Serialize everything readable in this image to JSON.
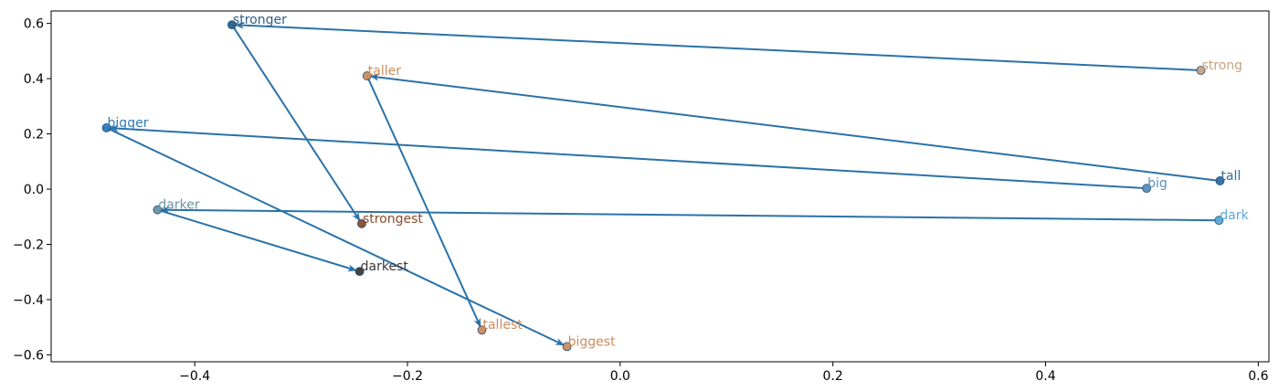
{
  "chart_data": {
    "type": "scatter",
    "title": "",
    "xlabel": "",
    "ylabel": "",
    "xlim": [
      -0.535,
      0.61
    ],
    "ylim": [
      -0.625,
      0.645
    ],
    "xticks": [
      -0.4,
      -0.2,
      0.0,
      0.2,
      0.4,
      0.6
    ],
    "xtick_labels": [
      "−0.4",
      "−0.2",
      "0.0",
      "0.2",
      "0.4",
      "0.6"
    ],
    "yticks": [
      -0.6,
      -0.4,
      -0.2,
      0.0,
      0.2,
      0.4,
      0.6
    ],
    "ytick_labels": [
      "−0.6",
      "−0.4",
      "−0.2",
      "0.0",
      "0.2",
      "0.4",
      "0.6"
    ],
    "grid": false,
    "colors": {
      "arrow": "#2a72a8",
      "comparative": "#1f77b4",
      "superlative": "#cc8c5c",
      "point_edge": "#1f4e79"
    },
    "points": [
      {
        "word": "strong",
        "x": 0.546,
        "y": 0.43,
        "color": "#c8a27e"
      },
      {
        "word": "stronger",
        "x": -0.365,
        "y": 0.595,
        "color": "#2b5f87"
      },
      {
        "word": "strongest",
        "x": -0.243,
        "y": -0.125,
        "color": "#8b4a2a"
      },
      {
        "word": "tall",
        "x": 0.564,
        "y": 0.03,
        "color": "#2e6f9e"
      },
      {
        "word": "taller",
        "x": -0.238,
        "y": 0.41,
        "color": "#cc8c5c"
      },
      {
        "word": "tallest",
        "x": -0.13,
        "y": -0.51,
        "color": "#cc8c5c"
      },
      {
        "word": "big",
        "x": 0.495,
        "y": 0.003,
        "color": "#5a90b8"
      },
      {
        "word": "bigger",
        "x": -0.483,
        "y": 0.222,
        "color": "#2e7ab8"
      },
      {
        "word": "biggest",
        "x": -0.05,
        "y": -0.57,
        "color": "#cc8c5c"
      },
      {
        "word": "dark",
        "x": 0.563,
        "y": -0.113,
        "color": "#5aa8d8"
      },
      {
        "word": "darker",
        "x": -0.435,
        "y": -0.075,
        "color": "#6a92a8"
      },
      {
        "word": "darkest",
        "x": -0.245,
        "y": -0.298,
        "color": "#3a3a3a"
      }
    ],
    "arrows": [
      {
        "from": "strong",
        "to": "stronger"
      },
      {
        "from": "stronger",
        "to": "strongest"
      },
      {
        "from": "tall",
        "to": "taller"
      },
      {
        "from": "taller",
        "to": "tallest"
      },
      {
        "from": "big",
        "to": "bigger"
      },
      {
        "from": "bigger",
        "to": "biggest"
      },
      {
        "from": "dark",
        "to": "darker"
      },
      {
        "from": "darker",
        "to": "darkest"
      }
    ]
  }
}
